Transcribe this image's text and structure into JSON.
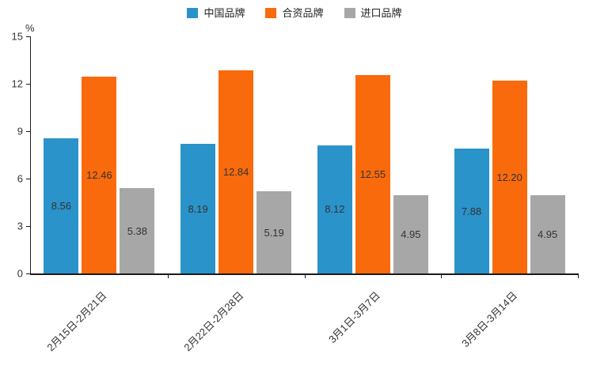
{
  "chart_data": {
    "type": "bar",
    "title": "",
    "unit_label": "%",
    "categories": [
      "2月15日-2月21日",
      "2月22日-2月28日",
      "3月1日-3月7日",
      "3月8日-3月14日"
    ],
    "series": [
      {
        "name": "中国品牌",
        "color": "#2A93C9",
        "values": [
          8.56,
          8.19,
          8.12,
          7.88
        ]
      },
      {
        "name": "合资品牌",
        "color": "#F96A0D",
        "values": [
          12.46,
          12.84,
          12.55,
          12.2
        ]
      },
      {
        "name": "进口品牌",
        "color": "#A7A7A7",
        "values": [
          5.38,
          5.19,
          4.95,
          4.95
        ]
      }
    ],
    "value_label_decimals": 2,
    "ylim": [
      0,
      15
    ],
    "yticks": [
      0,
      3,
      6,
      9,
      12,
      15
    ],
    "grid": false,
    "legend_position": "top",
    "axis_color": "#1a1a1a"
  }
}
